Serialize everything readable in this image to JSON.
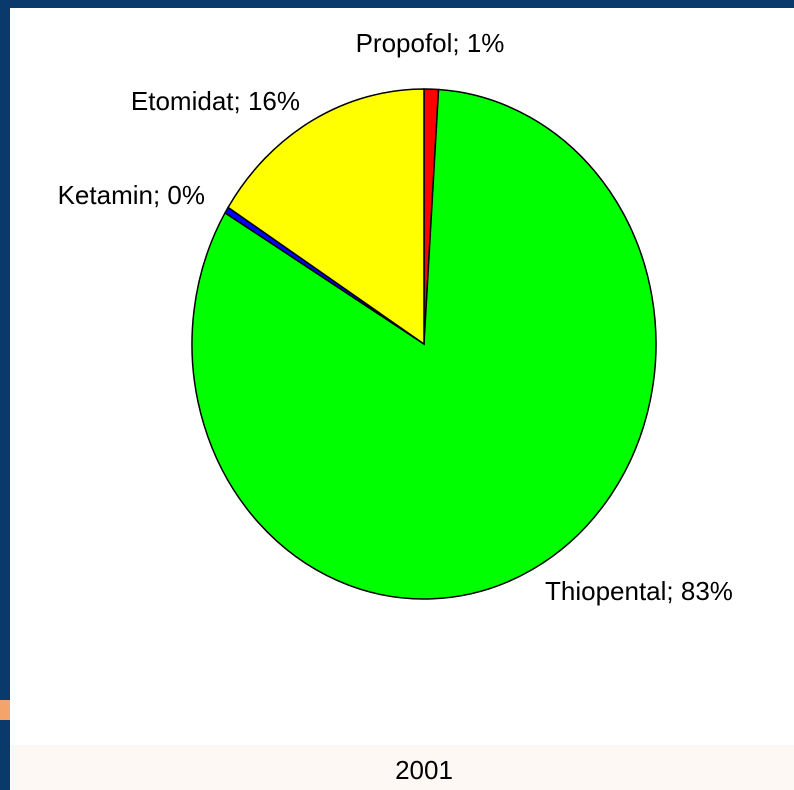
{
  "chart_data": {
    "type": "pie",
    "title": "2001",
    "values": [
      1,
      82.6,
      0.4,
      16
    ],
    "value_labels": [
      "Propofol; 1%",
      "Thiopental; 83%",
      "Ketamin; 0%",
      "Etomidat; 16%"
    ],
    "colors": [
      "#ff0000",
      "#00ff00",
      "#0000ff",
      "#ffff00"
    ]
  }
}
